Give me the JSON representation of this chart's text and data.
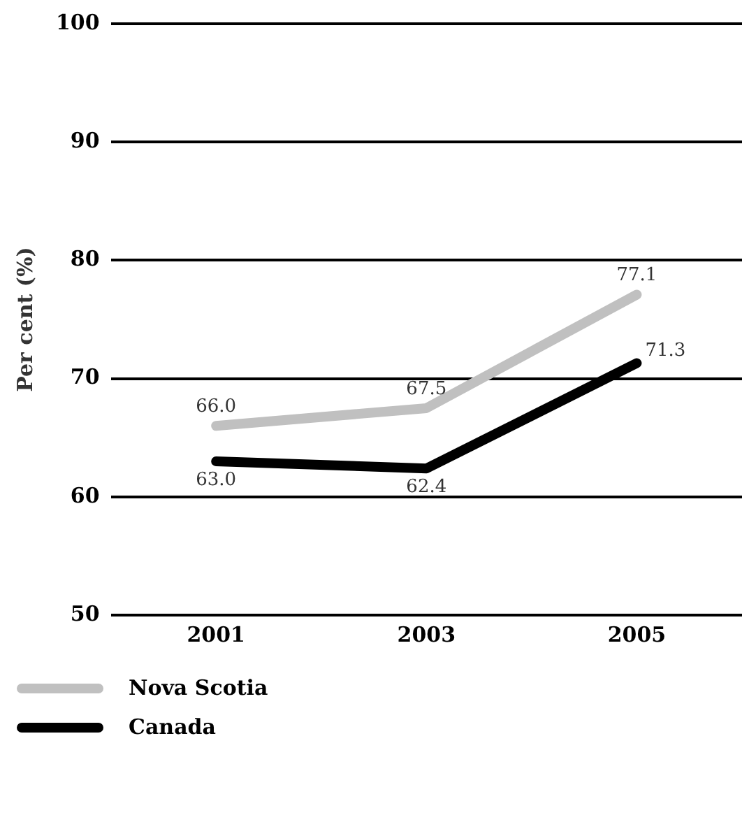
{
  "chart_data": {
    "type": "line",
    "ylabel": "Per cent (%)",
    "categories": [
      "2001",
      "2003",
      "2005"
    ],
    "series": [
      {
        "name": "Nova Scotia",
        "color": "#c0c0c0",
        "values": [
          66.0,
          67.5,
          77.1
        ],
        "value_labels": [
          "66.0",
          "67.5",
          "77.1"
        ]
      },
      {
        "name": "Canada",
        "color": "#000000",
        "values": [
          63.0,
          62.4,
          71.3
        ],
        "value_labels": [
          "63.0",
          "62.4",
          "71.3"
        ]
      }
    ],
    "ylim": [
      50,
      100
    ],
    "yticks": [
      50,
      60,
      70,
      80,
      90,
      100
    ],
    "grid": "y",
    "legend": "bottom",
    "marker": "none",
    "line_style": "solid"
  }
}
